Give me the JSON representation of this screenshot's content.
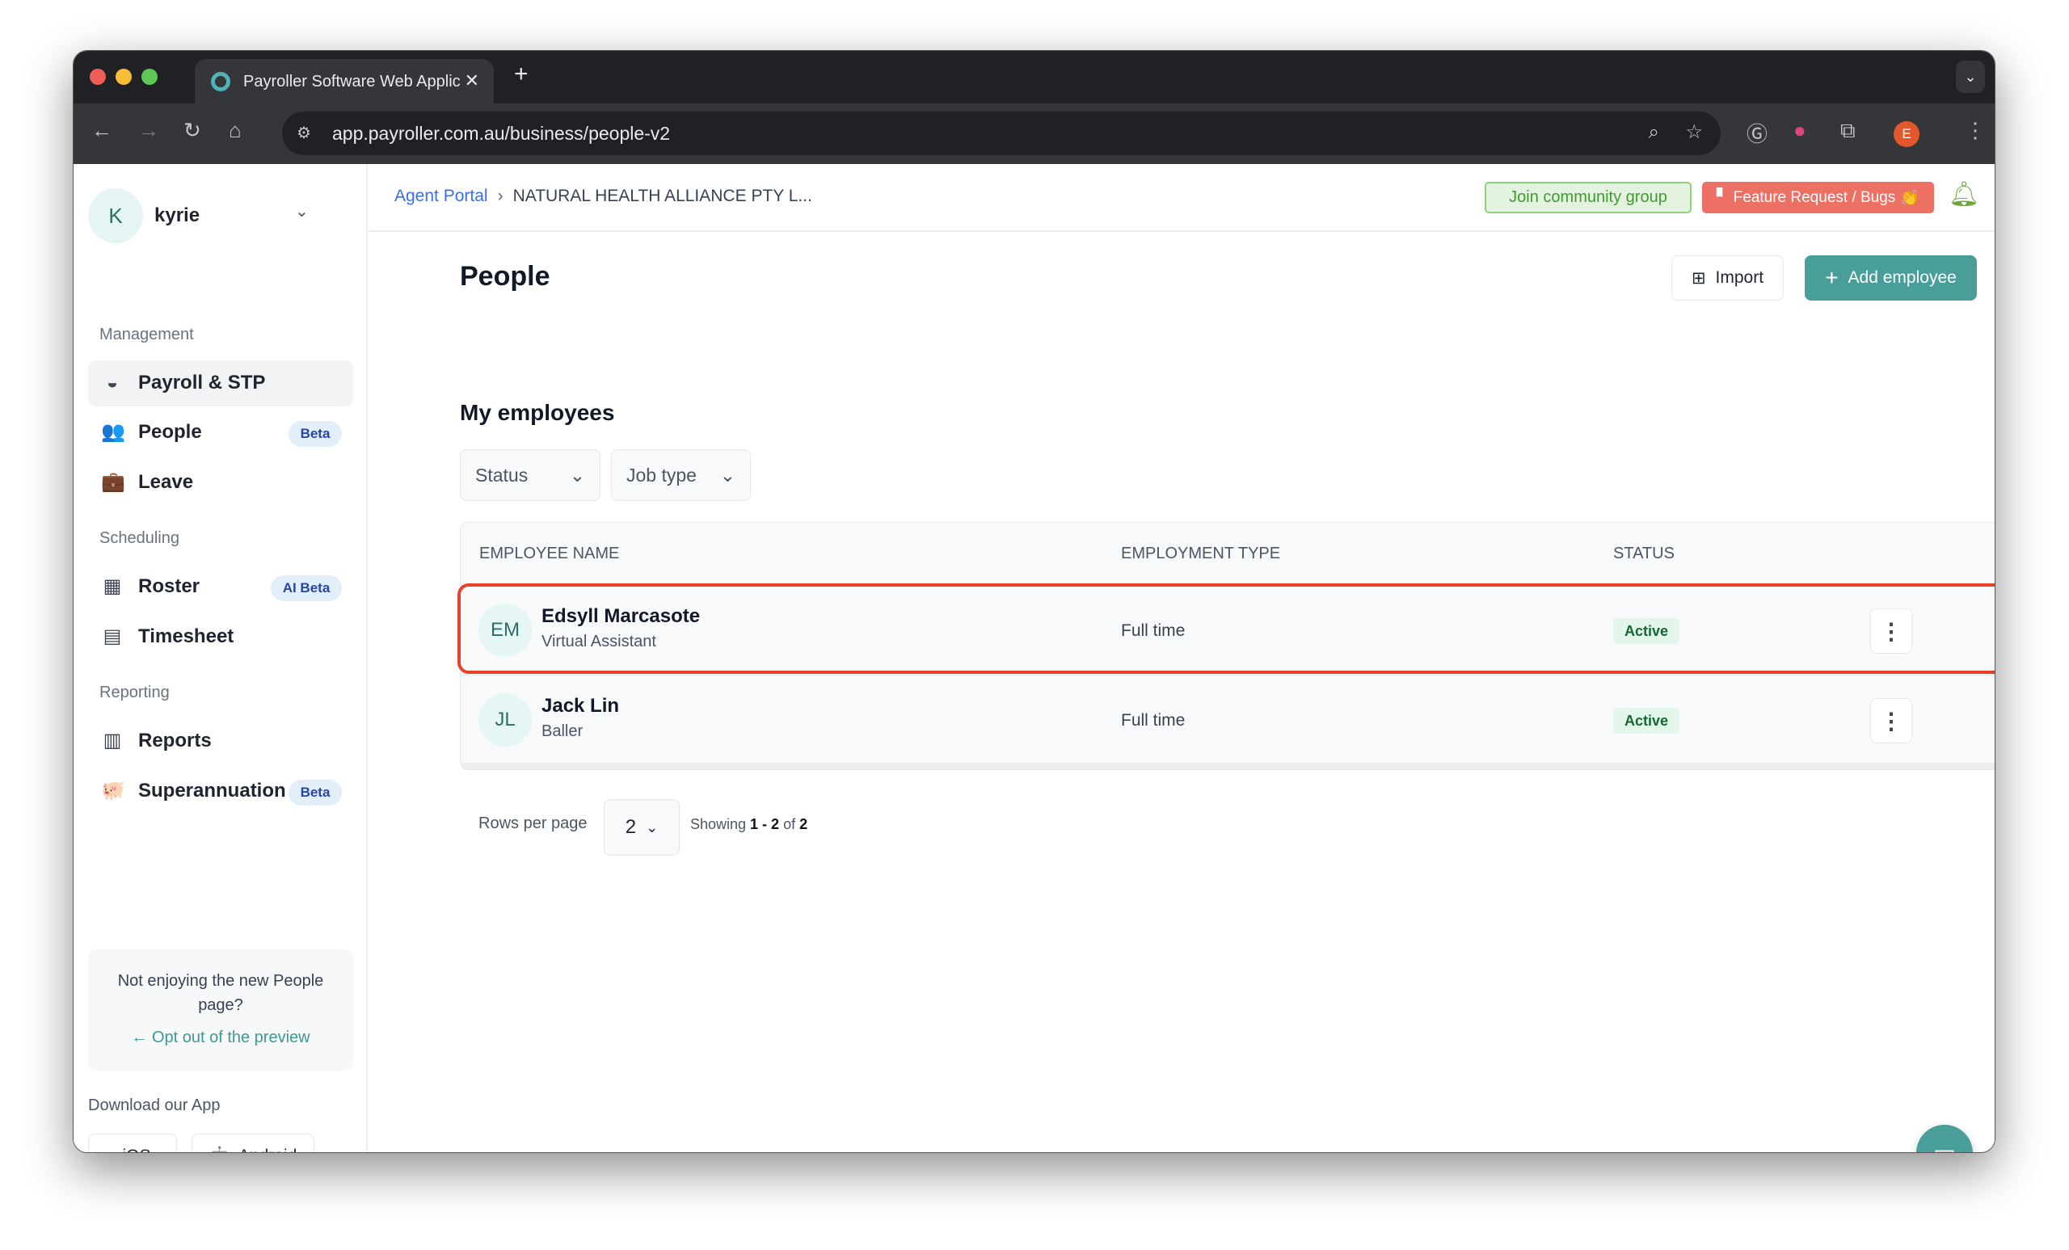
{
  "browser": {
    "tab_title": "Payroller Software Web Applic",
    "url": "app.payroller.com.au/business/people-v2",
    "profile_initial": "E"
  },
  "sidebar": {
    "user": {
      "initial": "K",
      "name": "kyrie"
    },
    "sections": [
      {
        "label": "Management"
      },
      {
        "label": "Scheduling"
      },
      {
        "label": "Reporting"
      }
    ],
    "items": [
      {
        "label": "Payroll & STP",
        "icon": "payroll-icon"
      },
      {
        "label": "People",
        "icon": "people-icon",
        "badge": "Beta",
        "active": true
      },
      {
        "label": "Leave",
        "icon": "briefcase-icon"
      },
      {
        "label": "Roster",
        "icon": "calendar-icon",
        "badge": "AI Beta"
      },
      {
        "label": "Timesheet",
        "icon": "clipboard-icon"
      },
      {
        "label": "Reports",
        "icon": "reports-icon"
      },
      {
        "label": "Superannuation",
        "icon": "piggy-bank-icon",
        "badge": "Beta"
      }
    ],
    "feedback": {
      "text": "Not enjoying the new People page?",
      "link": "Opt out of the preview"
    },
    "download": {
      "label": "Download our App",
      "ios": "iOS",
      "android": "Android"
    }
  },
  "header": {
    "breadcrumb": [
      "Agent Portal",
      "NATURAL HEALTH ALLIANCE PTY L..."
    ],
    "join_community": "Join community group",
    "feature_request": "Feature Request / Bugs"
  },
  "page": {
    "title": "People",
    "import": "Import",
    "add_employee": "Add employee",
    "section_title": "My employees",
    "filters": [
      "Status",
      "Job type"
    ]
  },
  "table": {
    "columns": [
      "EMPLOYEE NAME",
      "EMPLOYMENT TYPE",
      "STATUS"
    ],
    "rows": [
      {
        "initials": "EM",
        "name": "Edsyll Marcasote",
        "job_title": "Virtual Assistant",
        "employment_type": "Full time",
        "status": "Active",
        "highlighted": true
      },
      {
        "initials": "JL",
        "name": "Jack Lin",
        "job_title": "Baller",
        "employment_type": "Full time",
        "status": "Active"
      }
    ]
  },
  "pagination": {
    "rows_per_page_label": "Rows per page",
    "rows_per_page": "2",
    "showing_prefix": "Showing",
    "range": "1 - 2",
    "of": "of",
    "total": "2"
  },
  "colors": {
    "accent": "#4a9e9a",
    "highlight": "#e8412c",
    "join": "#4caf50",
    "feature": "#ec7063"
  }
}
